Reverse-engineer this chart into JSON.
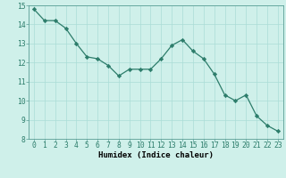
{
  "x": [
    0,
    1,
    2,
    3,
    4,
    5,
    6,
    7,
    8,
    9,
    10,
    11,
    12,
    13,
    14,
    15,
    16,
    17,
    18,
    19,
    20,
    21,
    22,
    23
  ],
  "y": [
    14.8,
    14.2,
    14.2,
    13.8,
    13.0,
    12.3,
    12.2,
    11.85,
    11.3,
    11.65,
    11.65,
    11.65,
    12.2,
    12.9,
    13.2,
    12.6,
    12.2,
    11.4,
    10.3,
    10.0,
    10.3,
    9.2,
    8.7,
    8.4
  ],
  "line_color": "#2d7d6b",
  "marker": "D",
  "marker_size": 2.2,
  "bg_color": "#cff0ea",
  "grid_color": "#aaddd6",
  "xlabel": "Humidex (Indice chaleur)",
  "ylim": [
    8,
    15
  ],
  "xlim": [
    -0.5,
    23.5
  ],
  "xticks": [
    0,
    1,
    2,
    3,
    4,
    5,
    6,
    7,
    8,
    9,
    10,
    11,
    12,
    13,
    14,
    15,
    16,
    17,
    18,
    19,
    20,
    21,
    22,
    23
  ],
  "yticks": [
    8,
    9,
    10,
    11,
    12,
    13,
    14,
    15
  ],
  "xlabel_fontsize": 6.5,
  "tick_fontsize": 5.8,
  "lw": 0.9
}
